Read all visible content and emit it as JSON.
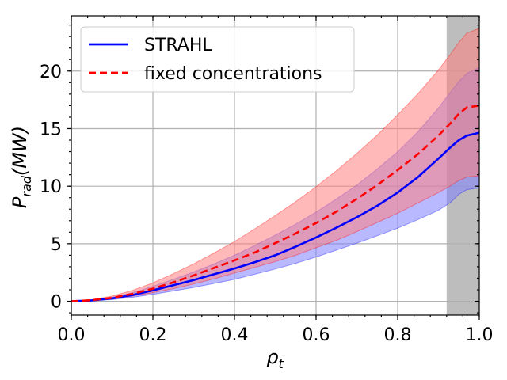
{
  "chart_data": {
    "type": "line",
    "title": "",
    "xlabel_main": "ρ",
    "xlabel_sub": "t",
    "ylabel_main": "P",
    "ylabel_sub": "rad",
    "ylabel_units": "(MW)",
    "xlim": [
      0.0,
      1.0
    ],
    "ylim": [
      -1.2,
      24.8
    ],
    "x_ticks": [
      0.0,
      0.2,
      0.4,
      0.6,
      0.8,
      1.0
    ],
    "x_tick_labels": [
      "0.0",
      "0.2",
      "0.4",
      "0.6",
      "0.8",
      "1.0"
    ],
    "y_ticks": [
      0,
      5,
      10,
      15,
      20
    ],
    "y_tick_labels": [
      "0",
      "5",
      "10",
      "15",
      "20"
    ],
    "grid": true,
    "legend_position": "top-left",
    "shaded_region": {
      "x_start": 0.92,
      "x_end": 1.0,
      "color": "#bdbdbd"
    },
    "series": [
      {
        "name": "STRAHL",
        "style": "solid",
        "color": "#0000ff",
        "band_color": "#8080ff",
        "x": [
          0.0,
          0.05,
          0.1,
          0.15,
          0.2,
          0.25,
          0.3,
          0.35,
          0.4,
          0.45,
          0.5,
          0.55,
          0.6,
          0.65,
          0.7,
          0.75,
          0.8,
          0.85,
          0.9,
          0.93,
          0.95,
          0.97,
          1.0
        ],
        "y": [
          0.0,
          0.08,
          0.25,
          0.55,
          0.95,
          1.4,
          1.85,
          2.35,
          2.85,
          3.4,
          4.0,
          4.75,
          5.55,
          6.4,
          7.3,
          8.3,
          9.45,
          10.8,
          12.4,
          13.4,
          14.0,
          14.4,
          14.65
        ],
        "lower": [
          0.0,
          0.05,
          0.15,
          0.35,
          0.6,
          0.9,
          1.2,
          1.55,
          1.9,
          2.35,
          2.8,
          3.3,
          3.85,
          4.45,
          5.05,
          5.7,
          6.35,
          7.1,
          7.9,
          8.6,
          9.3,
          9.7,
          9.85
        ],
        "upper": [
          0.0,
          0.1,
          0.35,
          0.75,
          1.3,
          1.9,
          2.55,
          3.25,
          4.0,
          4.85,
          5.75,
          6.7,
          7.75,
          8.9,
          10.1,
          11.5,
          13.0,
          14.75,
          16.8,
          18.2,
          19.1,
          19.8,
          20.3
        ]
      },
      {
        "name": "fixed concentrations",
        "style": "dashed",
        "color": "#ff0000",
        "band_color": "#ff8080",
        "x": [
          0.0,
          0.05,
          0.1,
          0.15,
          0.2,
          0.25,
          0.3,
          0.35,
          0.4,
          0.45,
          0.5,
          0.55,
          0.6,
          0.65,
          0.7,
          0.75,
          0.8,
          0.85,
          0.9,
          0.93,
          0.95,
          0.97,
          1.0
        ],
        "y": [
          0.0,
          0.1,
          0.3,
          0.65,
          1.1,
          1.65,
          2.25,
          2.9,
          3.55,
          4.25,
          5.05,
          5.9,
          6.8,
          7.8,
          8.9,
          10.1,
          11.4,
          12.8,
          14.4,
          15.5,
          16.3,
          16.85,
          17.0
        ],
        "lower": [
          0.0,
          0.06,
          0.2,
          0.45,
          0.75,
          1.1,
          1.5,
          1.95,
          2.45,
          2.95,
          3.45,
          4.0,
          4.65,
          5.3,
          6.05,
          6.85,
          7.65,
          8.55,
          9.45,
          10.05,
          10.5,
          10.8,
          10.9
        ],
        "upper": [
          0.0,
          0.14,
          0.45,
          0.95,
          1.6,
          2.4,
          3.25,
          4.2,
          5.2,
          6.3,
          7.45,
          8.65,
          9.95,
          11.35,
          12.85,
          14.45,
          16.2,
          18.05,
          20.1,
          21.5,
          22.5,
          23.3,
          23.7
        ]
      }
    ]
  }
}
